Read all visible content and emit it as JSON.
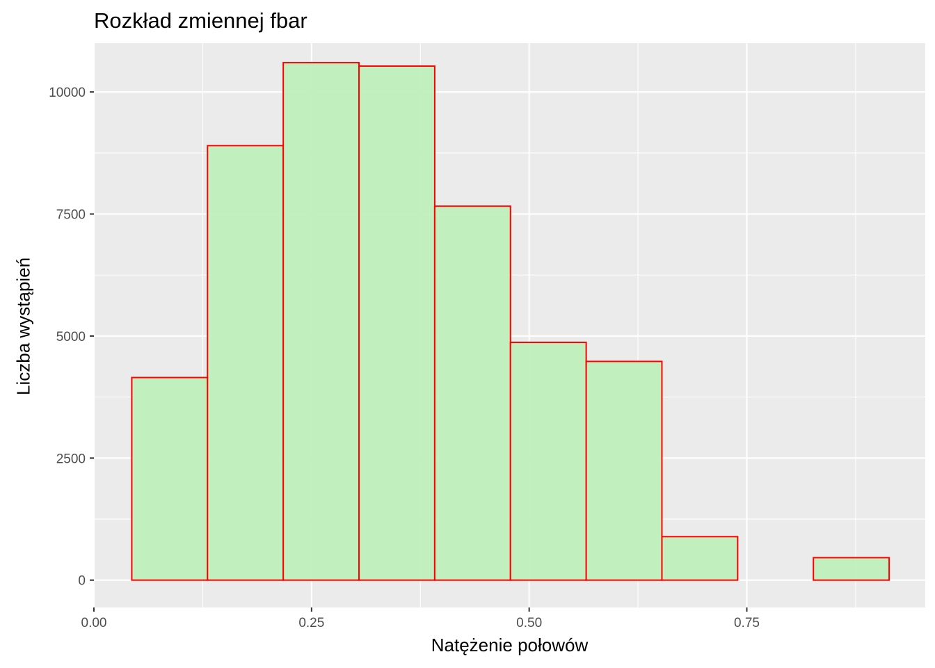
{
  "chart_data": {
    "type": "bar",
    "title": "Rozkład zmiennej fbar",
    "xlabel": "Natężenie połowów",
    "ylabel": "Liczba wystąpień",
    "xlim": [
      0.0,
      0.955
    ],
    "ylim": [
      -560,
      11000
    ],
    "x_ticks": [
      0.0,
      0.25,
      0.5,
      0.75
    ],
    "x_tick_labels": [
      "0.00",
      "0.25",
      "0.50",
      "0.75"
    ],
    "y_ticks": [
      0,
      2500,
      5000,
      7500,
      10000
    ],
    "y_tick_labels": [
      "0",
      "2500",
      "5000",
      "7500",
      "10000"
    ],
    "bins": [
      {
        "x0": 0.0435,
        "x1": 0.1305,
        "count": 4150
      },
      {
        "x0": 0.1305,
        "x1": 0.2175,
        "count": 8900
      },
      {
        "x0": 0.2175,
        "x1": 0.3045,
        "count": 10600
      },
      {
        "x0": 0.3045,
        "x1": 0.3915,
        "count": 10530
      },
      {
        "x0": 0.3915,
        "x1": 0.4785,
        "count": 7660
      },
      {
        "x0": 0.4785,
        "x1": 0.5655,
        "count": 4870
      },
      {
        "x0": 0.5655,
        "x1": 0.6525,
        "count": 4480
      },
      {
        "x0": 0.6525,
        "x1": 0.7395,
        "count": 890
      },
      {
        "x0": 0.7395,
        "x1": 0.8265,
        "count": 0
      },
      {
        "x0": 0.8265,
        "x1": 0.9135,
        "count": 460
      }
    ],
    "fill_color": "#bdf0ba",
    "border_color": "#ff0000",
    "panel_background": "#ebebeb",
    "grid": true,
    "grid_color": "#ffffff"
  }
}
